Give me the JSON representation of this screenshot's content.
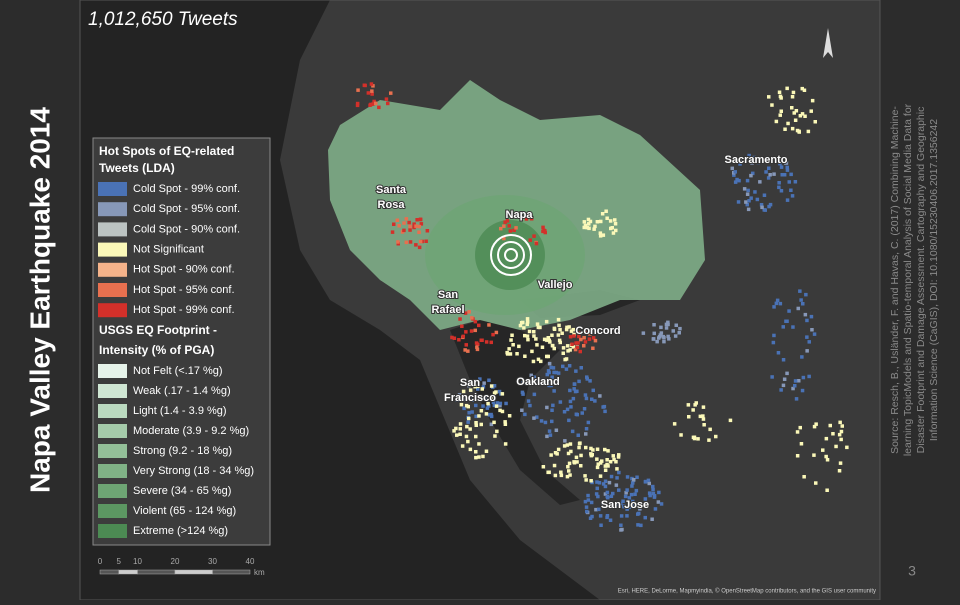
{
  "slide": {
    "title": "Napa Valley Earthquake 2014",
    "subtitle": "1,012,650  Tweets",
    "page_number": "3",
    "source": [
      "Source: Resch, B., Usländer, F. and Havas, C. (2017) Combining Machine-",
      "learning TopicModels and Spatio-temporal Analysis of Social Media Data for",
      "Disaster Footprint and Damage Assessment. Cartography and Geographic",
      "Information Science (CaGIS), DOI: 10.1080/15230406.2017.1356242"
    ]
  },
  "legend": {
    "hotspot_title": [
      "Hot Spots of EQ-related",
      "Tweets (LDA)"
    ],
    "hotspot_items": [
      {
        "label": "Cold Spot - 99% conf.",
        "color": "#4a72b5"
      },
      {
        "label": "Cold Spot - 95% conf.",
        "color": "#8798b8"
      },
      {
        "label": "Cold Spot - 90% conf.",
        "color": "#bcc3c2"
      },
      {
        "label": "Not Significant",
        "color": "#fbf8b8"
      },
      {
        "label": "Hot Spot - 90% conf.",
        "color": "#f5b38a"
      },
      {
        "label": "Hot Spot - 95% conf.",
        "color": "#e8704f"
      },
      {
        "label": "Hot Spot - 99% conf.",
        "color": "#d3302a"
      }
    ],
    "footprint_title": [
      "USGS EQ Footprint -",
      "Intensity (% of PGA)"
    ],
    "footprint_items": [
      {
        "label": "Not Felt (<.17 %g)",
        "color": "#e6f3ea"
      },
      {
        "label": "Weak (.17 - 1.4 %g)",
        "color": "#cfe6d3"
      },
      {
        "label": "Light (1.4 - 3.9 %g)",
        "color": "#bad9bf"
      },
      {
        "label": "Moderate (3.9 - 9.2 %g)",
        "color": "#a5cbaa"
      },
      {
        "label": "Strong (9.2 - 18 %g)",
        "color": "#93bf98"
      },
      {
        "label": "Very Strong (18 - 34 %g)",
        "color": "#80b286"
      },
      {
        "label": "Severe (34 - 65 %g)",
        "color": "#6ea574"
      },
      {
        "label": "Violent (65 - 124 %g)",
        "color": "#5c9762"
      },
      {
        "label": "Extreme (>124 %g)",
        "color": "#4c8a53"
      }
    ]
  },
  "cities": [
    {
      "lines": [
        "Santa",
        "Rosa"
      ]
    },
    {
      "lines": [
        "Napa"
      ]
    },
    {
      "lines": [
        "Vallejo"
      ]
    },
    {
      "lines": [
        "San",
        "Rafael"
      ]
    },
    {
      "lines": [
        "Concord"
      ]
    },
    {
      "lines": [
        "San",
        "Francisco"
      ]
    },
    {
      "lines": [
        "Oakland"
      ]
    },
    {
      "lines": [
        "Sacramento"
      ]
    },
    {
      "lines": [
        "San Jose"
      ]
    }
  ],
  "scale_bar": {
    "ticks": [
      0,
      5,
      10,
      20,
      30,
      40
    ],
    "unit": "km"
  },
  "attribution": "Esri, HERE, DeLorme, Mapmyindia, © OpenStreetMap contributors, and the GIS user community"
}
